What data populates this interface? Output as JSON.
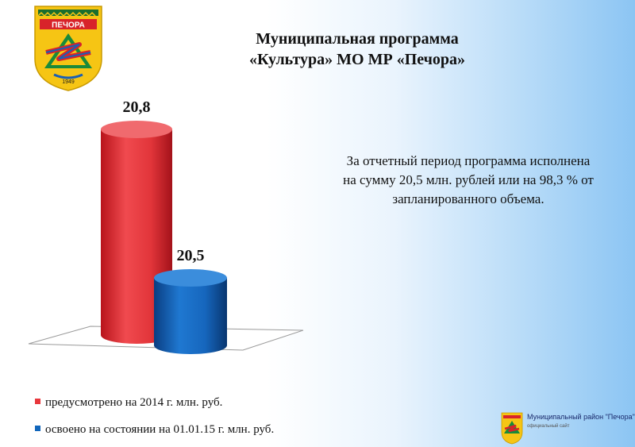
{
  "header": {
    "crest_city_name": "ПЕЧОРА",
    "crest_year": "1949",
    "title_line1": "Муниципальная программа",
    "title_line2": "«Культура» МО МР «Печора»"
  },
  "summary": {
    "line1": "За отчетный период  программа исполнена",
    "line2": "на сумму 20,5 млн. рублей или на  98,3 % от",
    "line3": "запланированного объема."
  },
  "chart_data": {
    "type": "bar",
    "style": "3d-cylinder",
    "series": [
      {
        "name": "предусмотрено на 2014 г. млн. руб.",
        "value": 20.8,
        "label": "20,8",
        "color": "#e8373c"
      },
      {
        "name": "освоено на состоянии на 01.01.15 г. млн. руб.",
        "value": 20.5,
        "label": "20,5",
        "color": "#1166bb"
      }
    ],
    "axes_visible": false,
    "legend_position": "bottom-left"
  },
  "footer": {
    "org_name": "Муниципальный район \"Печора\"",
    "org_sub": "официальный сайт"
  }
}
